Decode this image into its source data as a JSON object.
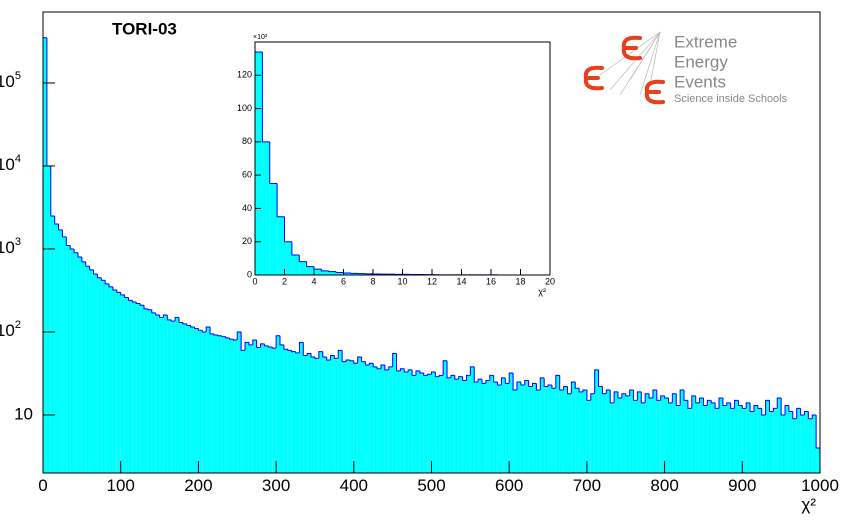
{
  "chart_data": [
    {
      "type": "histogram",
      "title": "TORI-03",
      "x_label": "χ²",
      "color": "#00ffff",
      "edge_color": "#0000ff",
      "log_y": true,
      "xlim": [
        0,
        1000
      ],
      "ylim": [
        2,
        716000
      ],
      "xticks": [
        0,
        100,
        200,
        300,
        400,
        500,
        600,
        700,
        800,
        900,
        1000
      ],
      "yticks": [
        10,
        {
          "value": 100,
          "label": "10",
          "exponent": "2"
        },
        {
          "value": 1000,
          "label": "10",
          "exponent": "3"
        },
        {
          "value": 10000,
          "label": "10",
          "exponent": "4"
        },
        {
          "value": 100000,
          "label": "10",
          "exponent": "5"
        }
      ],
      "bins": [
        0,
        5,
        10,
        15,
        20,
        25,
        30,
        35,
        40,
        45,
        50,
        55,
        60,
        65,
        70,
        75,
        80,
        85,
        90,
        95,
        100,
        105,
        110,
        115,
        120,
        125,
        130,
        135,
        140,
        145,
        150,
        155,
        160,
        165,
        170,
        175,
        180,
        185,
        190,
        195,
        200,
        205,
        210,
        215,
        220,
        225,
        230,
        235,
        240,
        245,
        250,
        255,
        260,
        265,
        270,
        275,
        280,
        285,
        290,
        295,
        300,
        305,
        310,
        315,
        320,
        325,
        330,
        335,
        340,
        345,
        350,
        355,
        360,
        365,
        370,
        375,
        380,
        385,
        390,
        395,
        400,
        405,
        410,
        415,
        420,
        425,
        430,
        435,
        440,
        445,
        450,
        455,
        460,
        465,
        470,
        475,
        480,
        485,
        490,
        495,
        500,
        505,
        510,
        515,
        520,
        525,
        530,
        535,
        540,
        545,
        550,
        555,
        560,
        565,
        570,
        575,
        580,
        585,
        590,
        595,
        600,
        605,
        610,
        615,
        620,
        625,
        630,
        635,
        640,
        645,
        650,
        655,
        660,
        665,
        670,
        675,
        680,
        685,
        690,
        695,
        700,
        705,
        710,
        715,
        720,
        725,
        730,
        735,
        740,
        745,
        750,
        755,
        760,
        765,
        770,
        775,
        780,
        785,
        790,
        795,
        800,
        805,
        810,
        815,
        820,
        825,
        830,
        835,
        840,
        845,
        850,
        855,
        860,
        865,
        870,
        875,
        880,
        885,
        890,
        895,
        900,
        905,
        910,
        915,
        920,
        925,
        930,
        935,
        940,
        945,
        950,
        955,
        960,
        965,
        970,
        975,
        980,
        985,
        990,
        995,
        1000
      ],
      "values": [
        350000,
        10000,
        2500,
        2000,
        1700,
        1400,
        1100,
        1000,
        900,
        800,
        700,
        620,
        560,
        500,
        450,
        420,
        380,
        350,
        320,
        300,
        280,
        260,
        240,
        230,
        220,
        210,
        190,
        185,
        170,
        160,
        150,
        160,
        140,
        135,
        150,
        130,
        125,
        120,
        115,
        110,
        105,
        100,
        115,
        95,
        92,
        90,
        88,
        85,
        82,
        80,
        100,
        60,
        75,
        70,
        80,
        65,
        72,
        68,
        66,
        64,
        90,
        70,
        62,
        60,
        58,
        56,
        75,
        52,
        55,
        50,
        48,
        58,
        50,
        46,
        52,
        48,
        60,
        44,
        46,
        45,
        42,
        50,
        44,
        40,
        42,
        38,
        36,
        40,
        35,
        38,
        55,
        34,
        36,
        33,
        35,
        30,
        34,
        32,
        30,
        31,
        33,
        29,
        30,
        45,
        28,
        30,
        27,
        29,
        26,
        30,
        38,
        25,
        27,
        24,
        26,
        30,
        25,
        23,
        28,
        24,
        32,
        20,
        25,
        23,
        26,
        22,
        24,
        20,
        28,
        22,
        23,
        21,
        30,
        20,
        22,
        18,
        25,
        21,
        19,
        20,
        15,
        18,
        35,
        22,
        18,
        20,
        14,
        19,
        16,
        18,
        17,
        20,
        15,
        19,
        14,
        18,
        16,
        20,
        15,
        17,
        16,
        14,
        18,
        13,
        20,
        15,
        12,
        17,
        14,
        16,
        13,
        15,
        14,
        12,
        16,
        13,
        14,
        12,
        15,
        13,
        12,
        14,
        11,
        13,
        12,
        10,
        15,
        11,
        12,
        16,
        10,
        13,
        11,
        9,
        12,
        10,
        11,
        9,
        10,
        4
      ]
    },
    {
      "type": "histogram",
      "x_label": "χ²",
      "y_multiplier": "×10³",
      "color": "#00ffff",
      "edge_color": "#0000ff",
      "log_y": false,
      "xlim": [
        0,
        20
      ],
      "ylim": [
        0,
        140
      ],
      "xticks": [
        0,
        2,
        4,
        6,
        8,
        10,
        12,
        14,
        16,
        18,
        20
      ],
      "yticks": [
        0,
        20,
        40,
        60,
        80,
        100,
        120
      ],
      "bins": [
        0,
        0.5,
        1,
        1.5,
        2,
        2.5,
        3,
        3.5,
        4,
        4.5,
        5,
        5.5,
        6,
        6.5,
        7,
        7.5,
        8,
        8.5,
        9,
        9.5,
        10,
        10.5,
        11,
        11.5,
        12,
        12.5,
        13,
        13.5,
        14,
        14.5,
        15,
        15.5,
        16,
        16.5,
        17,
        17.5,
        18,
        18.5,
        19,
        19.5,
        20
      ],
      "values": [
        134,
        80,
        55,
        35,
        20,
        12,
        8,
        5,
        3.5,
        2.5,
        2,
        1.5,
        1.2,
        1,
        0.8,
        0.7,
        0.6,
        0.5,
        0.5,
        0.4,
        0.4,
        0.3,
        0.3,
        0.2,
        0.2,
        0.1,
        0.1,
        0.1,
        0.1,
        0.1,
        0.1,
        0.1,
        0.1,
        0,
        0,
        0,
        0,
        0,
        0,
        0
      ]
    }
  ],
  "logo": {
    "lines": [
      "Extreme",
      "Energy",
      "Events"
    ],
    "tagline": "Science inside Schools"
  }
}
